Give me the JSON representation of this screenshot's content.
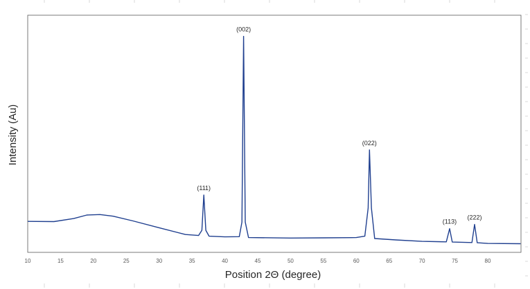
{
  "chart_data": {
    "type": "line",
    "title": "",
    "xlabel": "Position 2Θ (degree)",
    "ylabel": "Intensity (Au)",
    "xlim": [
      10,
      85
    ],
    "ylim": [
      0,
      100
    ],
    "x_ticks": [
      "10",
      "15",
      "20",
      "25",
      "30",
      "35",
      "40",
      "45",
      "50",
      "55",
      "60",
      "65",
      "70",
      "75",
      "80"
    ],
    "y_ticks_labeled": false,
    "grid": false,
    "legend": "none",
    "series_color": "#1f3f8f",
    "series": [
      {
        "values": [
          [
            10,
            12.3
          ],
          [
            14,
            12.2
          ],
          [
            17,
            13.5
          ],
          [
            19,
            15.0
          ],
          [
            21,
            15.2
          ],
          [
            23,
            14.5
          ],
          [
            26,
            12.5
          ],
          [
            30,
            9.6
          ],
          [
            34,
            6.7
          ],
          [
            36.0,
            6.3
          ],
          [
            36.5,
            8.5
          ],
          [
            36.8,
            23.5
          ],
          [
            37.1,
            8.5
          ],
          [
            37.6,
            6.0
          ],
          [
            40,
            5.7
          ],
          [
            42.2,
            5.8
          ],
          [
            42.6,
            12.0
          ],
          [
            42.85,
            91.0
          ],
          [
            43.1,
            12.0
          ],
          [
            43.6,
            5.4
          ],
          [
            50,
            5.2
          ],
          [
            55,
            5.3
          ],
          [
            60,
            5.4
          ],
          [
            61.3,
            6.0
          ],
          [
            61.8,
            18.0
          ],
          [
            62.0,
            42.7
          ],
          [
            62.3,
            18.0
          ],
          [
            62.8,
            5.0
          ],
          [
            66,
            4.4
          ],
          [
            70,
            3.8
          ],
          [
            73.7,
            3.6
          ],
          [
            74.2,
            9.2
          ],
          [
            74.6,
            3.5
          ],
          [
            77.6,
            3.3
          ],
          [
            78.0,
            11.0
          ],
          [
            78.4,
            3.2
          ],
          [
            80,
            2.9
          ],
          [
            85,
            2.8
          ]
        ]
      }
    ],
    "annotations": [
      {
        "text": "(111)",
        "x": 36.8,
        "y": 23.5
      },
      {
        "text": "(002)",
        "x": 42.85,
        "y": 91.0
      },
      {
        "text": "(022)",
        "x": 62.0,
        "y": 42.7
      },
      {
        "text": "(113)",
        "x": 74.2,
        "y": 9.2
      },
      {
        "text": "(222)",
        "x": 78.0,
        "y": 11.0
      }
    ]
  }
}
